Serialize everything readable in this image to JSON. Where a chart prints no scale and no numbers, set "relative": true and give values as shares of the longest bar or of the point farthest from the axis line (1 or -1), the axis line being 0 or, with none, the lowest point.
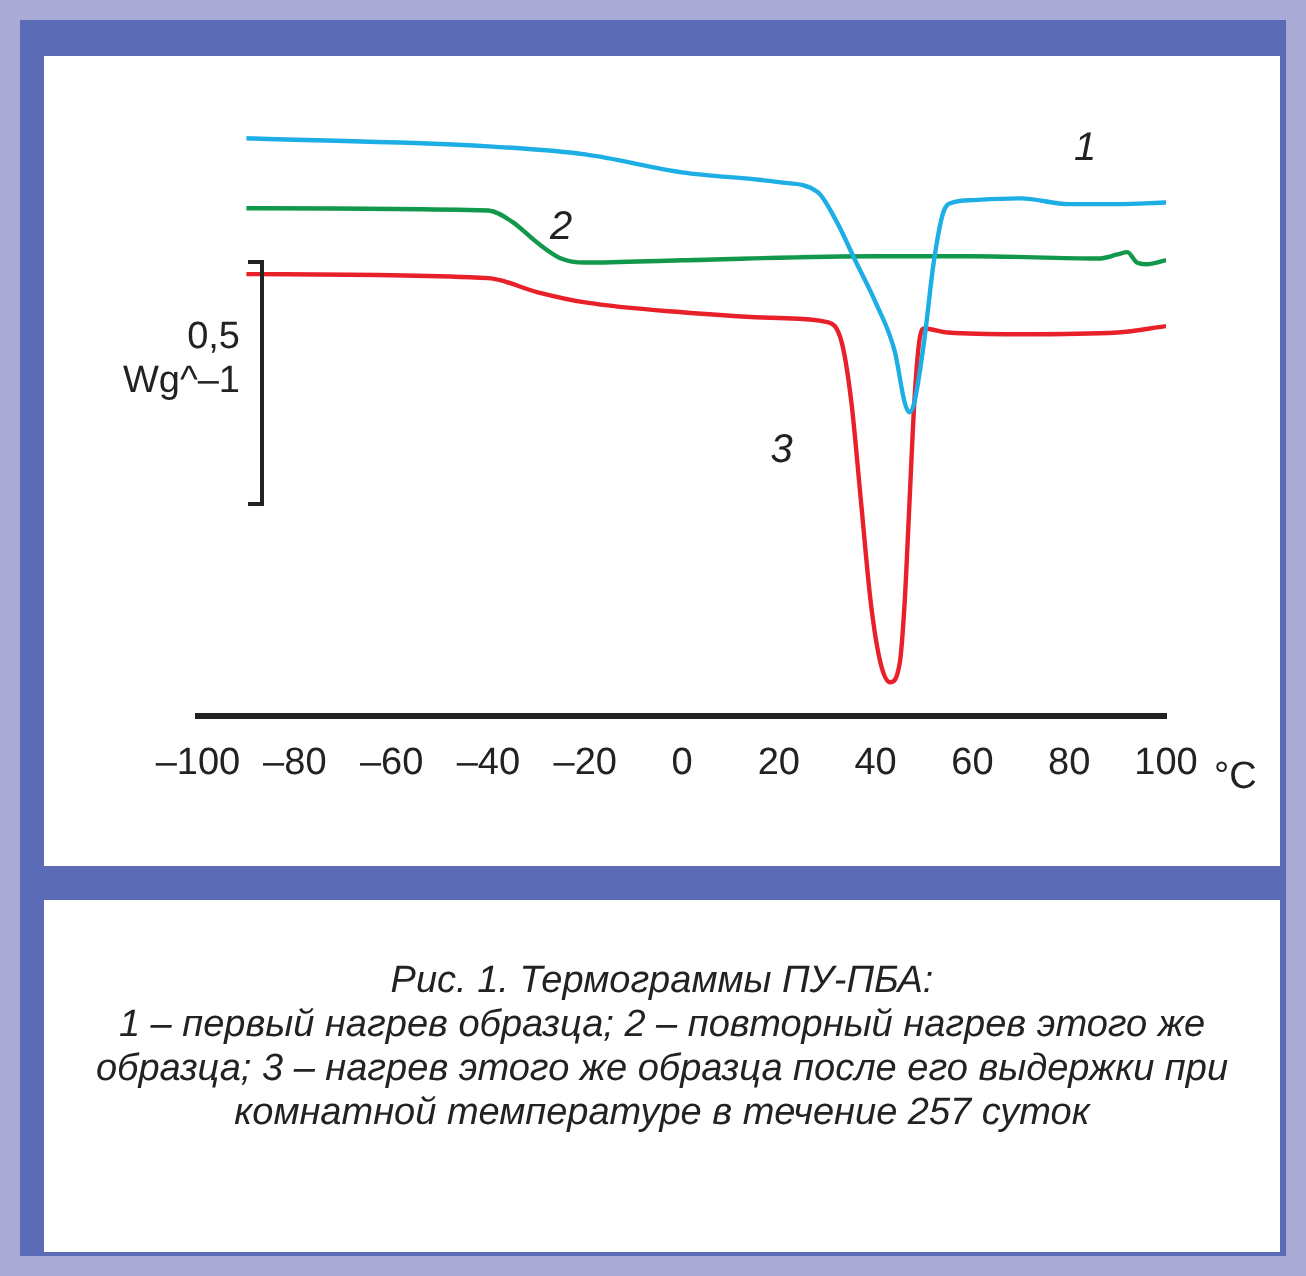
{
  "chart_data": {
    "type": "line",
    "relative": true,
    "title": "Рис. 1. Термограммы ПУ-ПБА:\n1 – первый нагрев образца; 2 – повторный нагрев этого же образца; 3 – нагрев этого же образца после его выдержки при комнатной температуре в течение 257 суток",
    "xlabel": "°C",
    "annotations": [
      "0,5",
      "Wg^–1"
    ],
    "xlim": [
      -100,
      100
    ],
    "xticks": [
      {
        "value": -100,
        "label": "–100"
      },
      {
        "value": -80,
        "label": "–80"
      },
      {
        "value": -60,
        "label": "–60"
      },
      {
        "value": -40,
        "label": "–40"
      },
      {
        "value": -20,
        "label": "–20"
      },
      0,
      20,
      40,
      60,
      80,
      100
    ],
    "grid": false,
    "legend": false,
    "marker": "none",
    "line_style": "solid",
    "series": [
      {
        "name": "1",
        "color": "#1eaee6",
        "x": [
          -90,
          -40,
          -20,
          0,
          20,
          28,
          32,
          36,
          40,
          44,
          46,
          47,
          48,
          50,
          52,
          54,
          56,
          60,
          70,
          80,
          90,
          100
        ],
        "values": [
          1,
          0.986,
          0.972,
          0.941,
          0.924,
          0.907,
          0.855,
          0.785,
          0.716,
          0.63,
          0.543,
          0.526,
          0.543,
          0.647,
          0.785,
          0.872,
          0.889,
          0.893,
          0.896,
          0.886,
          0.886,
          0.889
        ]
      },
      {
        "name": "2",
        "color": "#12984a",
        "x": [
          -90,
          -40,
          -35,
          -30,
          -25,
          -20,
          0,
          40,
          60,
          86,
          90,
          92,
          94,
          96,
          100
        ],
        "values": [
          0.879,
          0.875,
          0.855,
          0.82,
          0.792,
          0.785,
          0.789,
          0.796,
          0.796,
          0.792,
          0.799,
          0.803,
          0.785,
          0.782,
          0.789
        ]
      },
      {
        "name": "3",
        "color": "#e8202a",
        "x": [
          -90,
          -40,
          -30,
          -20,
          0,
          20,
          30,
          33,
          35,
          37,
          39,
          41,
          43,
          45,
          46,
          47,
          48,
          49,
          50,
          55,
          70,
          90,
          100
        ],
        "values": [
          0.765,
          0.758,
          0.734,
          0.716,
          0.699,
          0.689,
          0.682,
          0.647,
          0.543,
          0.37,
          0.197,
          0.093,
          0.059,
          0.093,
          0.197,
          0.37,
          0.543,
          0.647,
          0.671,
          0.664,
          0.661,
          0.664,
          0.675
        ]
      }
    ]
  }
}
